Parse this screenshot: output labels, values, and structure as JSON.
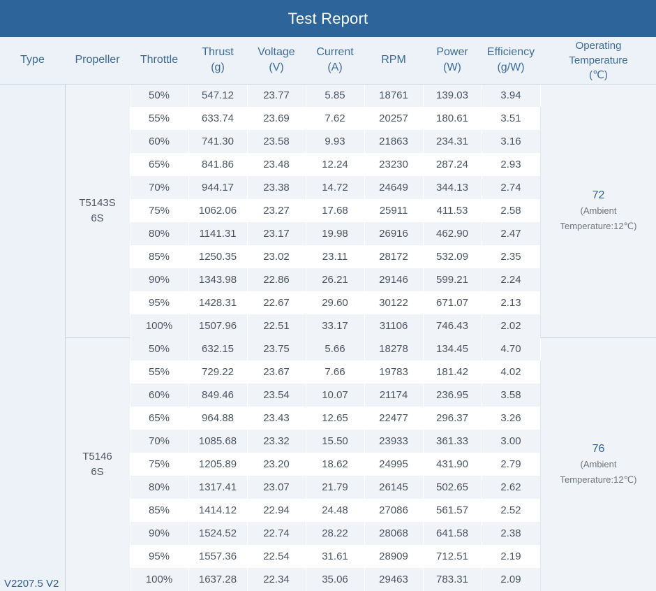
{
  "title": "Test Report",
  "headers": {
    "type": "Type",
    "propeller": "Propeller",
    "throttle": "Throttle",
    "thrust": [
      "Thrust",
      "(g)"
    ],
    "voltage": [
      "Voltage",
      "(V)"
    ],
    "current": [
      "Current",
      "(A)"
    ],
    "rpm": "RPM",
    "power": [
      "Power",
      "(W)"
    ],
    "efficiency": [
      "Efficiency",
      "(g/W)"
    ],
    "temperature": [
      "Operating",
      "Temperature",
      "(℃)"
    ]
  },
  "motor_type": "V2207.5 V2",
  "groups": [
    {
      "propeller": [
        "T5143S",
        "6S"
      ],
      "temperature": "72",
      "temperature_note": [
        "(Ambient",
        "Temperature:12℃)"
      ],
      "rows": [
        [
          "50%",
          "547.12",
          "23.77",
          "5.85",
          "18761",
          "139.03",
          "3.94"
        ],
        [
          "55%",
          "633.74",
          "23.69",
          "7.62",
          "20257",
          "180.61",
          "3.51"
        ],
        [
          "60%",
          "741.30",
          "23.58",
          "9.93",
          "21863",
          "234.31",
          "3.16"
        ],
        [
          "65%",
          "841.86",
          "23.48",
          "12.24",
          "23230",
          "287.24",
          "2.93"
        ],
        [
          "70%",
          "944.17",
          "23.38",
          "14.72",
          "24649",
          "344.13",
          "2.74"
        ],
        [
          "75%",
          "1062.06",
          "23.27",
          "17.68",
          "25911",
          "411.53",
          "2.58"
        ],
        [
          "80%",
          "1141.31",
          "23.17",
          "19.98",
          "26916",
          "462.90",
          "2.47"
        ],
        [
          "85%",
          "1250.35",
          "23.02",
          "23.11",
          "28172",
          "532.09",
          "2.35"
        ],
        [
          "90%",
          "1343.98",
          "22.86",
          "26.21",
          "29146",
          "599.21",
          "2.24"
        ],
        [
          "95%",
          "1428.31",
          "22.67",
          "29.60",
          "30122",
          "671.07",
          "2.13"
        ],
        [
          "100%",
          "1507.96",
          "22.51",
          "33.17",
          "31106",
          "746.43",
          "2.02"
        ]
      ]
    },
    {
      "propeller": [
        "T5146",
        "6S"
      ],
      "temperature": "76",
      "temperature_note": [
        "(Ambient",
        "Temperature:12℃)"
      ],
      "rows": [
        [
          "50%",
          "632.15",
          "23.75",
          "5.66",
          "18278",
          "134.45",
          "4.70"
        ],
        [
          "55%",
          "729.22",
          "23.67",
          "7.66",
          "19783",
          "181.42",
          "4.02"
        ],
        [
          "60%",
          "849.46",
          "23.54",
          "10.07",
          "21174",
          "236.95",
          "3.58"
        ],
        [
          "65%",
          "964.88",
          "23.43",
          "12.65",
          "22477",
          "296.37",
          "3.26"
        ],
        [
          "70%",
          "1085.68",
          "23.32",
          "15.50",
          "23933",
          "361.33",
          "3.00"
        ],
        [
          "75%",
          "1205.89",
          "23.20",
          "18.62",
          "24995",
          "431.90",
          "2.79"
        ],
        [
          "80%",
          "1317.41",
          "23.07",
          "21.79",
          "26145",
          "502.65",
          "2.62"
        ],
        [
          "85%",
          "1414.12",
          "22.94",
          "24.48",
          "27086",
          "561.57",
          "2.52"
        ],
        [
          "90%",
          "1524.52",
          "22.74",
          "28.22",
          "28068",
          "641.58",
          "2.38"
        ],
        [
          "95%",
          "1557.36",
          "22.54",
          "31.61",
          "28909",
          "712.51",
          "2.19"
        ],
        [
          "100%",
          "1637.28",
          "22.34",
          "35.06",
          "29463",
          "783.31",
          "2.09"
        ]
      ]
    }
  ]
}
